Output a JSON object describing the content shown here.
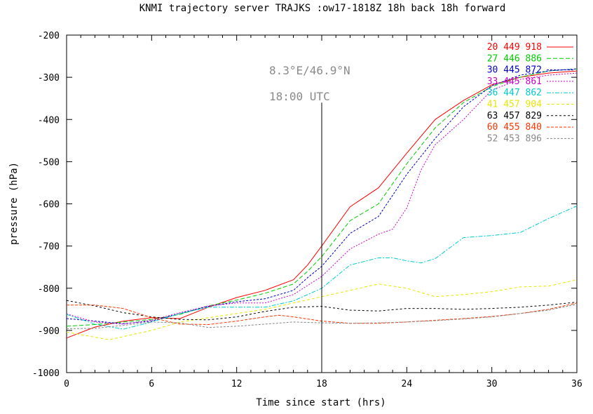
{
  "chart_data": {
    "type": "line",
    "title": "KNMI trajectory server TRAJKS :ow17-1818Z 18h back 18h forward",
    "xlabel": "Time since start (hrs)",
    "ylabel": "pressure (hPa)",
    "xlim": [
      0,
      36
    ],
    "ylim": [
      -1000,
      -200
    ],
    "xticks": [
      0,
      6,
      12,
      18,
      24,
      30,
      36
    ],
    "xtick_labels": [
      "0",
      "6",
      "12",
      "18",
      "24",
      "30",
      "36"
    ],
    "yticks": [
      -200,
      -300,
      -400,
      -500,
      -600,
      -700,
      -800,
      -900,
      -1000
    ],
    "ytick_labels": [
      "-200",
      "-300",
      "-400",
      "-500",
      "-600",
      "-700",
      "-800",
      "-900",
      "-1000"
    ],
    "grid": false,
    "legend_position": "top-right",
    "annotations": {
      "location": "8.3°E/46.9°N",
      "time": "18:00 UTC",
      "vline_x": 18
    },
    "series": [
      {
        "name": "20 449 918",
        "color": "#ff0000",
        "dash": "",
        "x": [
          0,
          2,
          4,
          6,
          8,
          10,
          12,
          14,
          16,
          17,
          18,
          20,
          22,
          24,
          26,
          28,
          30,
          32,
          34,
          36
        ],
        "y": [
          -918,
          -892,
          -878,
          -870,
          -872,
          -845,
          -822,
          -805,
          -780,
          -745,
          -700,
          -607,
          -562,
          -480,
          -400,
          -355,
          -318,
          -300,
          -290,
          -285
        ]
      },
      {
        "name": "27 446 886",
        "color": "#00cc00",
        "dash": "6,3",
        "x": [
          0,
          2,
          4,
          6,
          8,
          10,
          12,
          14,
          16,
          17,
          18,
          20,
          22,
          24,
          26,
          28,
          30,
          32,
          34,
          36
        ],
        "y": [
          -890,
          -886,
          -880,
          -874,
          -862,
          -842,
          -828,
          -812,
          -790,
          -760,
          -725,
          -640,
          -600,
          -505,
          -420,
          -360,
          -322,
          -300,
          -285,
          -280
        ]
      },
      {
        "name": "30 445 872",
        "color": "#0000cc",
        "dash": "3,2",
        "x": [
          0,
          2,
          4,
          6,
          8,
          10,
          12,
          14,
          16,
          17,
          18,
          20,
          22,
          24,
          26,
          28,
          30,
          32,
          34,
          36
        ],
        "y": [
          -872,
          -878,
          -884,
          -878,
          -860,
          -843,
          -832,
          -825,
          -805,
          -775,
          -748,
          -670,
          -630,
          -530,
          -445,
          -370,
          -320,
          -295,
          -285,
          -280
        ]
      },
      {
        "name": "33 445 861",
        "color": "#cc00cc",
        "dash": "2,2",
        "x": [
          0,
          2,
          4,
          6,
          8,
          10,
          12,
          14,
          16,
          18,
          20,
          22,
          23,
          24,
          25,
          26,
          28,
          30,
          32,
          34,
          36
        ],
        "y": [
          -861,
          -880,
          -885,
          -876,
          -858,
          -842,
          -835,
          -835,
          -815,
          -772,
          -707,
          -672,
          -660,
          -610,
          -520,
          -460,
          -400,
          -330,
          -305,
          -295,
          -290
        ]
      },
      {
        "name": "36 447 862",
        "color": "#00cccc",
        "dash": "6,2,2,2",
        "x": [
          0,
          2,
          4,
          6,
          8,
          10,
          12,
          14,
          16,
          18,
          20,
          22,
          23,
          24,
          25,
          26,
          28,
          30,
          32,
          34,
          36
        ],
        "y": [
          -862,
          -885,
          -897,
          -880,
          -860,
          -845,
          -845,
          -845,
          -830,
          -800,
          -745,
          -728,
          -728,
          -735,
          -740,
          -730,
          -680,
          -675,
          -668,
          -635,
          -605
        ]
      },
      {
        "name": "41 457 904",
        "color": "#e6e600",
        "dash": "4,3",
        "x": [
          0,
          3,
          6,
          8,
          10,
          12,
          14,
          16,
          18,
          20,
          22,
          24,
          26,
          28,
          30,
          32,
          34,
          36
        ],
        "y": [
          -904,
          -922,
          -900,
          -880,
          -870,
          -860,
          -850,
          -835,
          -820,
          -805,
          -790,
          -800,
          -820,
          -815,
          -808,
          -797,
          -795,
          -780
        ]
      },
      {
        "name": "63 457 829",
        "color": "#000000",
        "dash": "3,3",
        "x": [
          0,
          2,
          4,
          6,
          8,
          10,
          12,
          14,
          16,
          18,
          20,
          22,
          24,
          26,
          28,
          30,
          32,
          34,
          36
        ],
        "y": [
          -829,
          -842,
          -858,
          -868,
          -874,
          -875,
          -868,
          -855,
          -845,
          -843,
          -852,
          -854,
          -848,
          -848,
          -850,
          -848,
          -845,
          -840,
          -833
        ]
      },
      {
        "name": "60 455 840",
        "color": "#ff3300",
        "dash": "4,2",
        "x": [
          0,
          2,
          4,
          6,
          8,
          10,
          12,
          14,
          15,
          16,
          18,
          20,
          22,
          24,
          26,
          28,
          30,
          32,
          34,
          36
        ],
        "y": [
          -840,
          -840,
          -848,
          -870,
          -885,
          -886,
          -878,
          -868,
          -864,
          -868,
          -878,
          -883,
          -883,
          -880,
          -876,
          -872,
          -867,
          -860,
          -850,
          -835
        ]
      },
      {
        "name": "52 453 896",
        "color": "#888888",
        "dash": "3,2",
        "x": [
          0,
          2,
          4,
          6,
          8,
          10,
          12,
          14,
          16,
          18,
          20,
          22,
          24,
          26,
          28,
          30,
          32,
          34,
          36
        ],
        "y": [
          -896,
          -895,
          -888,
          -880,
          -882,
          -893,
          -890,
          -885,
          -880,
          -882,
          -883,
          -882,
          -880,
          -877,
          -873,
          -868,
          -860,
          -852,
          -838
        ]
      }
    ]
  }
}
